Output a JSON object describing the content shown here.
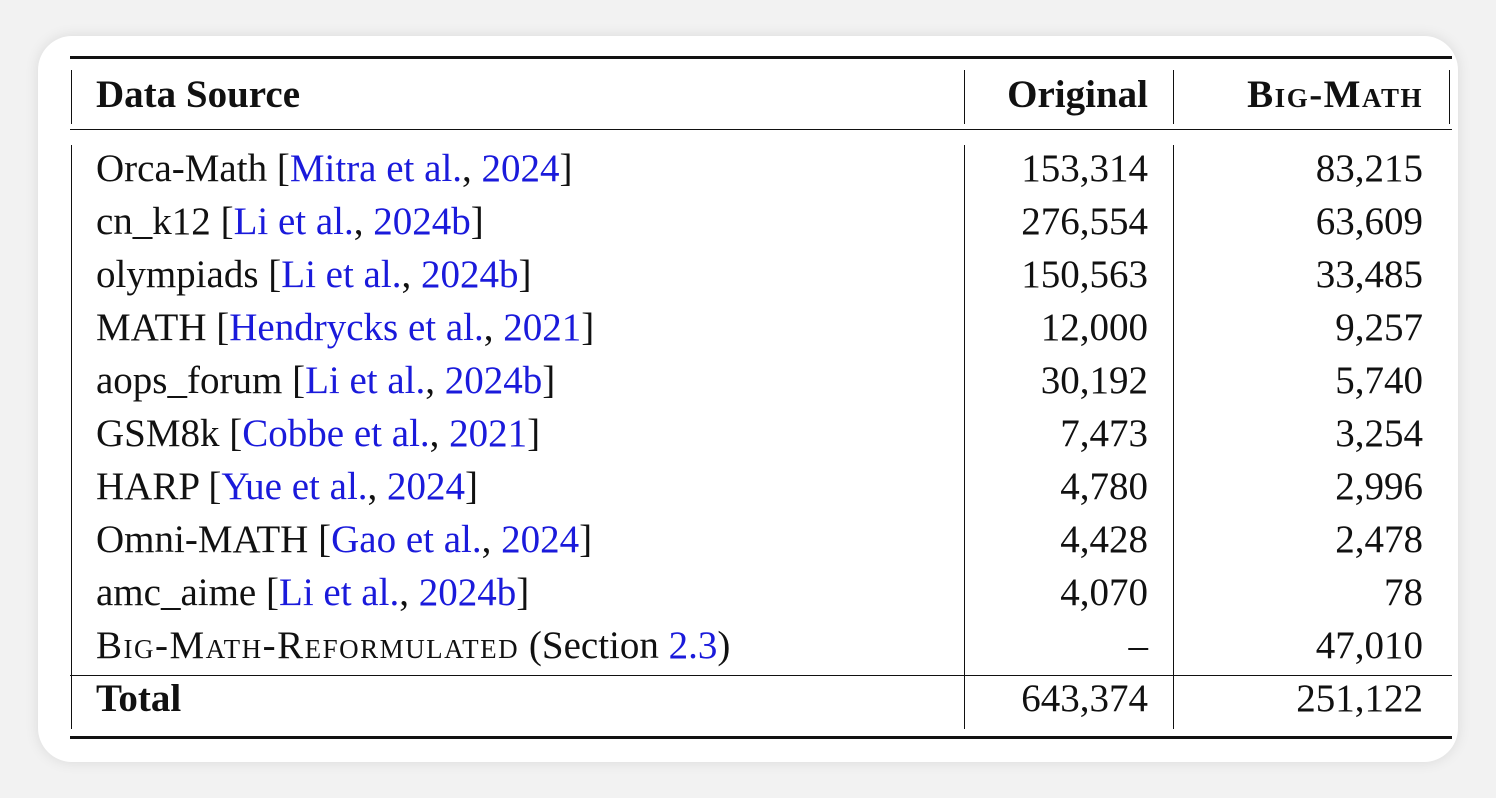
{
  "table": {
    "headers": {
      "source": "Data Source",
      "original": "Original",
      "bigmath": "Big-Math"
    },
    "rows": [
      {
        "name": "Orca-Math",
        "authors": "Mitra et al.",
        "year": "2024",
        "original": "153,314",
        "bigmath": "83,215"
      },
      {
        "name": "cn_k12",
        "authors": "Li et al.",
        "year": "2024b",
        "original": "276,554",
        "bigmath": "63,609"
      },
      {
        "name": "olympiads",
        "authors": "Li et al.",
        "year": "2024b",
        "original": "150,563",
        "bigmath": "33,485"
      },
      {
        "name": "MATH",
        "authors": "Hendrycks et al.",
        "year": "2021",
        "original": "12,000",
        "bigmath": "9,257"
      },
      {
        "name": "aops_forum",
        "authors": "Li et al.",
        "year": "2024b",
        "original": "30,192",
        "bigmath": "5,740"
      },
      {
        "name": "GSM8k",
        "authors": "Cobbe et al.",
        "year": "2021",
        "original": "7,473",
        "bigmath": "3,254"
      },
      {
        "name": "HARP",
        "authors": "Yue et al.",
        "year": "2024",
        "original": "4,780",
        "bigmath": "2,996"
      },
      {
        "name": "Omni-MATH",
        "authors": "Gao et al.",
        "year": "2024",
        "original": "4,428",
        "bigmath": "2,478"
      },
      {
        "name": "amc_aime",
        "authors": "Li et al.",
        "year": "2024b",
        "original": "4,070",
        "bigmath": "78"
      }
    ],
    "reformulated": {
      "name": "Big-Math-Reformulated",
      "section_prefix": "(Section ",
      "section_ref": "2.3",
      "section_suffix": ")",
      "original": "–",
      "bigmath": "47,010"
    },
    "total": {
      "label": "Total",
      "original": "643,374",
      "bigmath": "251,122"
    }
  }
}
